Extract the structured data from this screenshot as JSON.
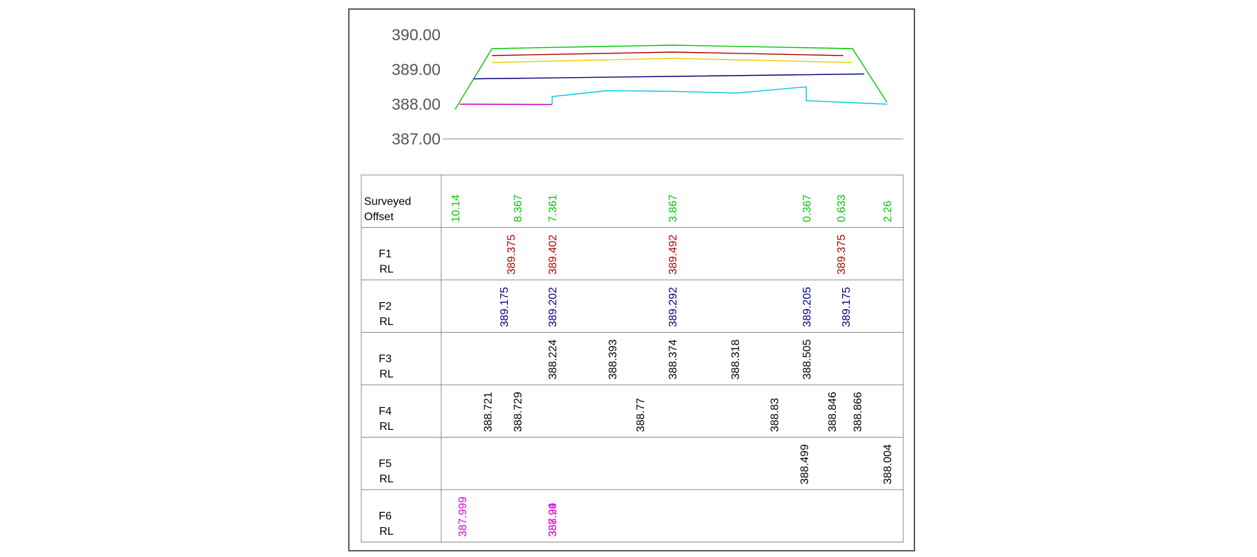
{
  "colors": {
    "frame": "#222222",
    "grid": "#888888",
    "surveyed": "#00c800",
    "f1": "#b00000",
    "f2": "#00007a",
    "f3": "#000000",
    "f4": "#000000",
    "f5": "#000000",
    "f6": "#e000e0",
    "f1_line": "#b00000",
    "f2_line": "#00007a",
    "f3_line": "#00c8e0",
    "f6_line": "#c000c0",
    "top_line": "#00c800",
    "yellow_line": "#e8d000"
  },
  "chart_data": {
    "type": "line",
    "title": "",
    "xlabel": "",
    "ylabel": "",
    "yticks": [
      "390.00",
      "389.00",
      "388.00",
      "387.00"
    ],
    "ylim": [
      387.0,
      390.0
    ],
    "xlim": [
      0,
      1
    ],
    "grid": false,
    "legend": "none",
    "series": [
      {
        "key": "top",
        "points": [
          [
            0.03,
            387.85
          ],
          [
            0.11,
            389.6
          ],
          [
            0.5,
            389.7
          ],
          [
            0.89,
            389.6
          ],
          [
            0.965,
            388.05
          ]
        ]
      },
      {
        "key": "f1",
        "points": [
          [
            0.11,
            389.4
          ],
          [
            0.5,
            389.5
          ],
          [
            0.87,
            389.4
          ]
        ]
      },
      {
        "key": "yellow",
        "points": [
          [
            0.11,
            389.2
          ],
          [
            0.5,
            389.32
          ],
          [
            0.89,
            389.2
          ]
        ]
      },
      {
        "key": "f2",
        "points": [
          [
            0.07,
            388.73
          ],
          [
            0.5,
            388.8
          ],
          [
            0.915,
            388.87
          ]
        ]
      },
      {
        "key": "f3",
        "points": [
          [
            0.24,
            388.0
          ],
          [
            0.24,
            388.22
          ],
          [
            0.36,
            388.39
          ],
          [
            0.5,
            388.37
          ],
          [
            0.64,
            388.32
          ],
          [
            0.79,
            388.5
          ],
          [
            0.79,
            388.1
          ],
          [
            0.965,
            388.0
          ]
        ]
      },
      {
        "key": "f6",
        "points": [
          [
            0.04,
            388.0
          ],
          [
            0.24,
            387.99
          ]
        ]
      }
    ]
  },
  "table": {
    "rows": [
      {
        "key": "surveyed",
        "label_line1": "Surveyed",
        "label_line2": "Offset",
        "cells": [
          {
            "text": "10.14",
            "pos": 0.03
          },
          {
            "text": "8.367",
            "pos": 0.165
          },
          {
            "text": "7.361",
            "pos": 0.24
          },
          {
            "text": "3.867",
            "pos": 0.5
          },
          {
            "text": "0.367",
            "pos": 0.79
          },
          {
            "text": "0.633",
            "pos": 0.865
          },
          {
            "text": "2.26",
            "pos": 0.965
          }
        ]
      },
      {
        "key": "f1",
        "label_line1": "F1",
        "label_line2": "RL",
        "cells": [
          {
            "text": "389.375",
            "pos": 0.15
          },
          {
            "text": "389.402",
            "pos": 0.24
          },
          {
            "text": "389.492",
            "pos": 0.5
          },
          {
            "text": "389.375",
            "pos": 0.865
          }
        ]
      },
      {
        "key": "f2",
        "label_line1": "F2",
        "label_line2": "RL",
        "cells": [
          {
            "text": "389.175",
            "pos": 0.135
          },
          {
            "text": "389.202",
            "pos": 0.24
          },
          {
            "text": "389.292",
            "pos": 0.5
          },
          {
            "text": "389.205",
            "pos": 0.79
          },
          {
            "text": "389.175",
            "pos": 0.875
          }
        ]
      },
      {
        "key": "f3",
        "label_line1": "F3",
        "label_line2": "RL",
        "cells": [
          {
            "text": "388.224",
            "pos": 0.24
          },
          {
            "text": "388.393",
            "pos": 0.37
          },
          {
            "text": "388.374",
            "pos": 0.5
          },
          {
            "text": "388.318",
            "pos": 0.635
          },
          {
            "text": "388.505",
            "pos": 0.79
          }
        ]
      },
      {
        "key": "f4",
        "label_line1": "F4",
        "label_line2": "RL",
        "cells": [
          {
            "text": "388.721",
            "pos": 0.1
          },
          {
            "text": "388.729",
            "pos": 0.165
          },
          {
            "text": "388.77",
            "pos": 0.43
          },
          {
            "text": "388.83",
            "pos": 0.72
          },
          {
            "text": "388.846",
            "pos": 0.845
          },
          {
            "text": "388.866",
            "pos": 0.9
          }
        ]
      },
      {
        "key": "f5",
        "label_line1": "F5",
        "label_line2": "RL",
        "cells": [
          {
            "text": "388.499",
            "pos": 0.785
          },
          {
            "text": "388.004",
            "pos": 0.965
          }
        ]
      },
      {
        "key": "f6",
        "label_line1": "F6",
        "label_line2": "RL",
        "cells": [
          {
            "text": "387.999",
            "pos": 0.045
          },
          {
            "text": "388.24",
            "pos": 0.24
          },
          {
            "text": "387.99",
            "pos": 0.24
          }
        ]
      }
    ]
  }
}
